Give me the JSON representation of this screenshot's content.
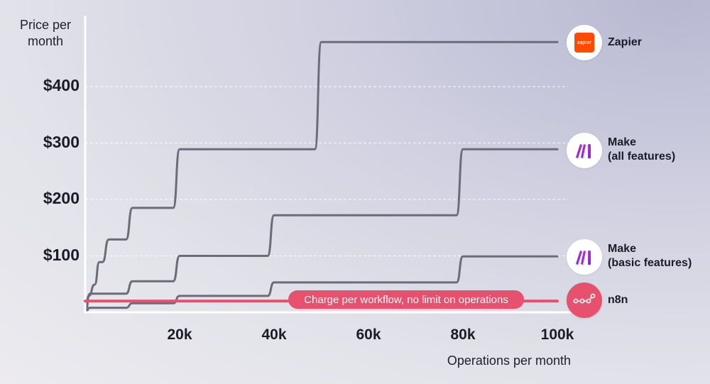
{
  "chart_data": {
    "type": "line",
    "xlabel": "Operations per month",
    "ylabel": "Price per month",
    "xlim": [
      0,
      100000
    ],
    "ylim": [
      0,
      480
    ],
    "x_ticks": [
      {
        "value": 20000,
        "label": "20k"
      },
      {
        "value": 40000,
        "label": "40k"
      },
      {
        "value": 60000,
        "label": "60k"
      },
      {
        "value": 80000,
        "label": "80k"
      },
      {
        "value": 100000,
        "label": "100k"
      }
    ],
    "y_ticks": [
      {
        "value": 100,
        "label": "$100"
      },
      {
        "value": 200,
        "label": "$200"
      },
      {
        "value": 300,
        "label": "$300"
      },
      {
        "value": 400,
        "label": "$400"
      }
    ],
    "grid": "horizontal dashed",
    "series": [
      {
        "name": "Zapier",
        "key": "zapier",
        "color": "#6b6b7a",
        "x": [
          0,
          750,
          2000,
          3000,
          5000,
          10000,
          20000,
          50000,
          100000
        ],
        "y": [
          0,
          29,
          49,
          89,
          129,
          185,
          289,
          479,
          479
        ]
      },
      {
        "name": "Make (all features)",
        "key": "make_all",
        "color": "#6b6b7a",
        "x": [
          0,
          1000,
          10000,
          20000,
          40000,
          80000,
          100000
        ],
        "y": [
          0,
          33,
          55,
          100,
          172,
          289,
          289
        ]
      },
      {
        "name": "Make (basic features)",
        "key": "make_basic",
        "color": "#6b6b7a",
        "x": [
          0,
          1000,
          10000,
          20000,
          40000,
          80000,
          100000
        ],
        "y": [
          0,
          8,
          16,
          29,
          53,
          99,
          99
        ]
      },
      {
        "name": "n8n",
        "key": "n8n",
        "color": "#e8516e",
        "x": [
          0,
          100000
        ],
        "y": [
          20,
          20
        ]
      }
    ],
    "annotation": "Charge per workflow, no limit on operations"
  },
  "labels": {
    "zapier": "Zapier",
    "make_all_line1": "Make",
    "make_all_line2": "(all features)",
    "make_basic_line1": "Make",
    "make_basic_line2": "(basic features)",
    "n8n": "n8n",
    "zapier_logo_text": "zapier"
  },
  "colors": {
    "zapier_brand": "#ff4a00",
    "make_brand_start": "#d42fe0",
    "make_brand_end": "#6b22d9",
    "n8n_brand": "#e8516e"
  }
}
